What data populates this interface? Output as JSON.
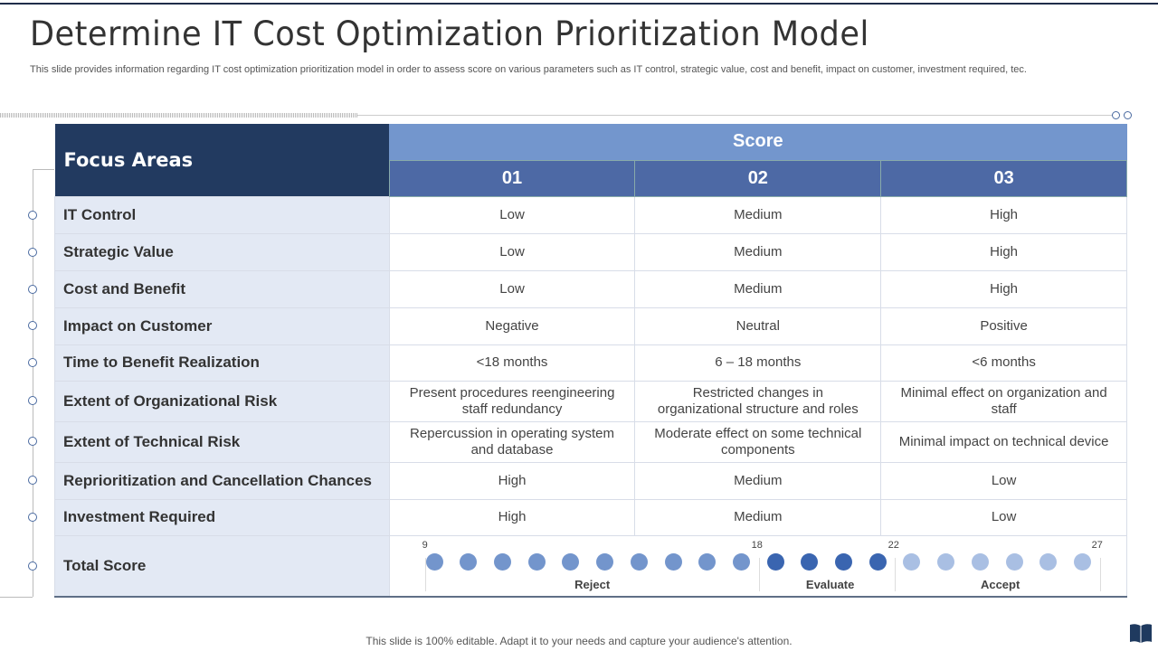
{
  "title": "Determine IT Cost Optimization Prioritization Model",
  "subtitle": "This slide provides information regarding IT cost optimization prioritization model in order to assess score on various parameters such as IT control, strategic value, cost and benefit, impact on customer, investment required, tec.",
  "table": {
    "focus_header": "Focus Areas",
    "score_header": "Score",
    "columns": [
      "01",
      "02",
      "03"
    ],
    "rows": [
      {
        "label": "IT Control",
        "values": [
          "Low",
          "Medium",
          "High"
        ]
      },
      {
        "label": "Strategic Value",
        "values": [
          "Low",
          "Medium",
          "High"
        ]
      },
      {
        "label": "Cost and Benefit",
        "values": [
          "Low",
          "Medium",
          "High"
        ]
      },
      {
        "label": "Impact on Customer",
        "values": [
          "Negative",
          "Neutral",
          "Positive"
        ]
      },
      {
        "label": "Time to Benefit Realization",
        "values": [
          "<18 months",
          "6 – 18 months",
          "<6 months"
        ]
      },
      {
        "label": "Extent of Organizational Risk",
        "values": [
          "Present procedures reengineering staff redundancy",
          "Restricted changes in organizational structure and roles",
          "Minimal effect on organization and staff"
        ]
      },
      {
        "label": "Extent of Technical Risk",
        "values": [
          "Repercussion in operating system and database",
          "Moderate effect on some technical components",
          "Minimal impact on technical device"
        ]
      },
      {
        "label": "Reprioritization and Cancellation Chances",
        "values": [
          "High",
          "Medium",
          "Low"
        ]
      },
      {
        "label": "Investment Required",
        "values": [
          "High",
          "Medium",
          "Low"
        ]
      }
    ],
    "total": {
      "label": "Total Score",
      "ticks": [
        "9",
        "18",
        "22",
        "27"
      ],
      "zones": [
        {
          "label": "Reject",
          "dots": 10,
          "color": "#7395cc"
        },
        {
          "label": "Evaluate",
          "dots": 4,
          "color": "#3a65b0"
        },
        {
          "label": "Accept",
          "dots": 6,
          "color": "#a9bfe3"
        }
      ]
    }
  },
  "footer": "This slide is 100% editable. Adapt it to your needs and capture your audience's attention.",
  "icons": {
    "corner": "book-icon"
  }
}
